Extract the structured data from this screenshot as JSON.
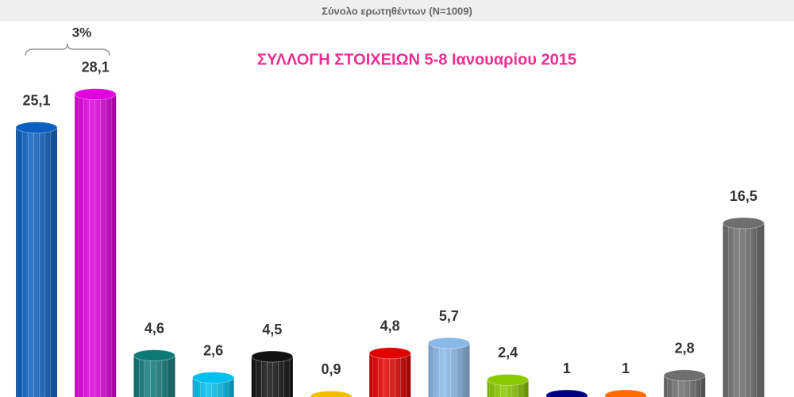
{
  "chart_data": {
    "type": "bar",
    "subtitle": "Σύνολο ερωτηθέντων (N=1009)",
    "title": "ΣΥΛΛΟΓΗ ΣΤΟΙΧΕΙΩΝ 5-8 Ιανουαρίου 2015",
    "annotation": "3%",
    "categories": [
      null,
      null,
      null,
      null,
      null,
      null,
      null,
      null,
      null,
      null,
      null,
      null,
      null
    ],
    "values": [
      25.1,
      28.1,
      4.6,
      2.6,
      4.5,
      0.9,
      4.8,
      5.7,
      2.4,
      1,
      1,
      2.8,
      16.5
    ],
    "value_labels": [
      "25,1",
      "28,1",
      "4,6",
      "2,6",
      "4,5",
      "0,9",
      "4,8",
      "5,7",
      "2,4",
      "1",
      "1",
      "2,8",
      "16,5"
    ],
    "colors": [
      "#0a5fc0",
      "#e000e0",
      "#0e7a78",
      "#00c0ef",
      "#111111",
      "#f0c000",
      "#e00000",
      "#8ab8e8",
      "#8cc800",
      "#000080",
      "#ff6a00",
      "#6e6e6e",
      "#6e6e6e"
    ]
  }
}
